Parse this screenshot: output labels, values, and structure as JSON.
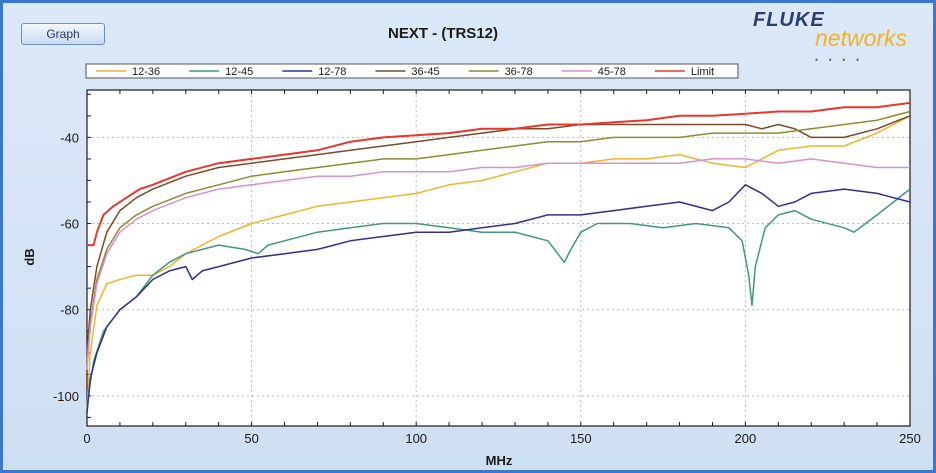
{
  "window": {
    "graph_button_label": "Graph",
    "logo_text": "FLUKE",
    "logo_subtext": "networks",
    "logo_dots": "• • • •"
  },
  "chart_data": {
    "type": "line",
    "title": "NEXT - (TRS12)",
    "xlabel": "MHz",
    "ylabel": "dB",
    "xlim": [
      0,
      250
    ],
    "ylim": [
      -107,
      -29
    ],
    "xticks": [
      0,
      50,
      100,
      150,
      200,
      250
    ],
    "yticks": [
      -100,
      -80,
      -60,
      -40
    ],
    "grid": true,
    "legend_position": "top",
    "series": [
      {
        "name": "12-36",
        "color": "#f2b32a",
        "points": [
          [
            0,
            -103
          ],
          [
            1,
            -90
          ],
          [
            3,
            -79
          ],
          [
            6,
            -74
          ],
          [
            10,
            -73
          ],
          [
            15,
            -72
          ],
          [
            20,
            -72
          ],
          [
            25,
            -70
          ],
          [
            30,
            -67
          ],
          [
            40,
            -63
          ],
          [
            50,
            -60
          ],
          [
            60,
            -58
          ],
          [
            70,
            -56
          ],
          [
            80,
            -55
          ],
          [
            90,
            -54
          ],
          [
            100,
            -53
          ],
          [
            110,
            -51
          ],
          [
            120,
            -50
          ],
          [
            130,
            -48
          ],
          [
            140,
            -46
          ],
          [
            150,
            -46
          ],
          [
            160,
            -45
          ],
          [
            170,
            -45
          ],
          [
            180,
            -44
          ],
          [
            190,
            -46
          ],
          [
            200,
            -47
          ],
          [
            205,
            -45
          ],
          [
            210,
            -43
          ],
          [
            220,
            -42
          ],
          [
            230,
            -42
          ],
          [
            240,
            -39
          ],
          [
            250,
            -35
          ]
        ]
      },
      {
        "name": "12-45",
        "color": "#3f9a76",
        "points": [
          [
            0,
            -102
          ],
          [
            2,
            -92
          ],
          [
            5,
            -85
          ],
          [
            10,
            -80
          ],
          [
            15,
            -77
          ],
          [
            20,
            -72
          ],
          [
            25,
            -69
          ],
          [
            30,
            -67
          ],
          [
            35,
            -66
          ],
          [
            40,
            -65
          ],
          [
            48,
            -66
          ],
          [
            52,
            -67
          ],
          [
            55,
            -65
          ],
          [
            60,
            -64
          ],
          [
            70,
            -62
          ],
          [
            80,
            -61
          ],
          [
            90,
            -60
          ],
          [
            100,
            -60
          ],
          [
            110,
            -61
          ],
          [
            120,
            -62
          ],
          [
            130,
            -62
          ],
          [
            135,
            -63
          ],
          [
            140,
            -64
          ],
          [
            143,
            -67
          ],
          [
            145,
            -69
          ],
          [
            147,
            -66
          ],
          [
            150,
            -62
          ],
          [
            155,
            -60
          ],
          [
            165,
            -60
          ],
          [
            175,
            -61
          ],
          [
            185,
            -60
          ],
          [
            195,
            -61
          ],
          [
            199,
            -64
          ],
          [
            201,
            -72
          ],
          [
            202,
            -79
          ],
          [
            203,
            -70
          ],
          [
            206,
            -61
          ],
          [
            210,
            -58
          ],
          [
            215,
            -57
          ],
          [
            220,
            -59
          ],
          [
            230,
            -61
          ],
          [
            233,
            -62
          ],
          [
            240,
            -58
          ],
          [
            250,
            -52
          ]
        ]
      },
      {
        "name": "12-78",
        "color": "#2e2f96",
        "points": [
          [
            0,
            -104
          ],
          [
            1,
            -96
          ],
          [
            3,
            -90
          ],
          [
            6,
            -84
          ],
          [
            10,
            -80
          ],
          [
            15,
            -77
          ],
          [
            20,
            -73
          ],
          [
            25,
            -71
          ],
          [
            30,
            -70
          ],
          [
            32,
            -73
          ],
          [
            35,
            -71
          ],
          [
            40,
            -70
          ],
          [
            50,
            -68
          ],
          [
            60,
            -67
          ],
          [
            70,
            -66
          ],
          [
            75,
            -65
          ],
          [
            80,
            -64
          ],
          [
            90,
            -63
          ],
          [
            100,
            -62
          ],
          [
            110,
            -62
          ],
          [
            120,
            -61
          ],
          [
            130,
            -60
          ],
          [
            140,
            -58
          ],
          [
            150,
            -58
          ],
          [
            160,
            -57
          ],
          [
            170,
            -56
          ],
          [
            180,
            -55
          ],
          [
            190,
            -57
          ],
          [
            195,
            -55
          ],
          [
            200,
            -51
          ],
          [
            205,
            -53
          ],
          [
            210,
            -56
          ],
          [
            215,
            -55
          ],
          [
            220,
            -53
          ],
          [
            230,
            -52
          ],
          [
            240,
            -53
          ],
          [
            250,
            -55
          ]
        ]
      },
      {
        "name": "36-45",
        "color": "#7a4a28",
        "points": [
          [
            0,
            -90
          ],
          [
            1,
            -80
          ],
          [
            3,
            -70
          ],
          [
            6,
            -62
          ],
          [
            10,
            -57
          ],
          [
            15,
            -54
          ],
          [
            20,
            -52
          ],
          [
            30,
            -49
          ],
          [
            40,
            -47
          ],
          [
            50,
            -46
          ],
          [
            60,
            -45
          ],
          [
            70,
            -44
          ],
          [
            80,
            -43
          ],
          [
            90,
            -42
          ],
          [
            100,
            -41
          ],
          [
            110,
            -40
          ],
          [
            120,
            -39
          ],
          [
            130,
            -38
          ],
          [
            140,
            -38
          ],
          [
            150,
            -37
          ],
          [
            160,
            -37
          ],
          [
            170,
            -37
          ],
          [
            180,
            -37
          ],
          [
            190,
            -37
          ],
          [
            200,
            -37
          ],
          [
            205,
            -38
          ],
          [
            210,
            -37
          ],
          [
            215,
            -38
          ],
          [
            220,
            -40
          ],
          [
            230,
            -40
          ],
          [
            240,
            -38
          ],
          [
            250,
            -35
          ]
        ]
      },
      {
        "name": "36-78",
        "color": "#8c8c2e",
        "points": [
          [
            0,
            -92
          ],
          [
            1,
            -83
          ],
          [
            3,
            -73
          ],
          [
            6,
            -66
          ],
          [
            10,
            -61
          ],
          [
            15,
            -58
          ],
          [
            20,
            -56
          ],
          [
            30,
            -53
          ],
          [
            40,
            -51
          ],
          [
            50,
            -49
          ],
          [
            60,
            -48
          ],
          [
            70,
            -47
          ],
          [
            80,
            -46
          ],
          [
            90,
            -45
          ],
          [
            100,
            -45
          ],
          [
            110,
            -44
          ],
          [
            120,
            -43
          ],
          [
            130,
            -42
          ],
          [
            140,
            -41
          ],
          [
            150,
            -41
          ],
          [
            160,
            -40
          ],
          [
            170,
            -40
          ],
          [
            180,
            -40
          ],
          [
            190,
            -39
          ],
          [
            200,
            -39
          ],
          [
            210,
            -39
          ],
          [
            220,
            -38
          ],
          [
            230,
            -37
          ],
          [
            240,
            -36
          ],
          [
            250,
            -34
          ]
        ]
      },
      {
        "name": "45-78",
        "color": "#d98fd0",
        "points": [
          [
            0,
            -94
          ],
          [
            1,
            -84
          ],
          [
            3,
            -74
          ],
          [
            6,
            -67
          ],
          [
            10,
            -62
          ],
          [
            15,
            -59
          ],
          [
            20,
            -57
          ],
          [
            30,
            -54
          ],
          [
            40,
            -52
          ],
          [
            50,
            -51
          ],
          [
            60,
            -50
          ],
          [
            70,
            -49
          ],
          [
            80,
            -49
          ],
          [
            90,
            -48
          ],
          [
            100,
            -48
          ],
          [
            110,
            -48
          ],
          [
            120,
            -47
          ],
          [
            130,
            -47
          ],
          [
            140,
            -46
          ],
          [
            150,
            -46
          ],
          [
            160,
            -46
          ],
          [
            170,
            -46
          ],
          [
            180,
            -46
          ],
          [
            190,
            -45
          ],
          [
            200,
            -45
          ],
          [
            210,
            -46
          ],
          [
            220,
            -45
          ],
          [
            230,
            -46
          ],
          [
            240,
            -47
          ],
          [
            250,
            -47
          ]
        ]
      },
      {
        "name": "Limit",
        "color": "#e8362d",
        "points": [
          [
            0,
            -65
          ],
          [
            2,
            -65
          ],
          [
            3,
            -62
          ],
          [
            5,
            -58
          ],
          [
            8,
            -56
          ],
          [
            12,
            -54
          ],
          [
            16,
            -52
          ],
          [
            20,
            -51
          ],
          [
            30,
            -48
          ],
          [
            40,
            -46
          ],
          [
            50,
            -45
          ],
          [
            60,
            -44
          ],
          [
            70,
            -43
          ],
          [
            80,
            -41
          ],
          [
            90,
            -40
          ],
          [
            100,
            -39.5
          ],
          [
            110,
            -39
          ],
          [
            120,
            -38
          ],
          [
            130,
            -38
          ],
          [
            140,
            -37
          ],
          [
            150,
            -37
          ],
          [
            160,
            -36.5
          ],
          [
            170,
            -36
          ],
          [
            180,
            -35
          ],
          [
            190,
            -35
          ],
          [
            200,
            -34.5
          ],
          [
            210,
            -34
          ],
          [
            220,
            -34
          ],
          [
            230,
            -33
          ],
          [
            240,
            -33
          ],
          [
            250,
            -32
          ]
        ]
      }
    ]
  }
}
